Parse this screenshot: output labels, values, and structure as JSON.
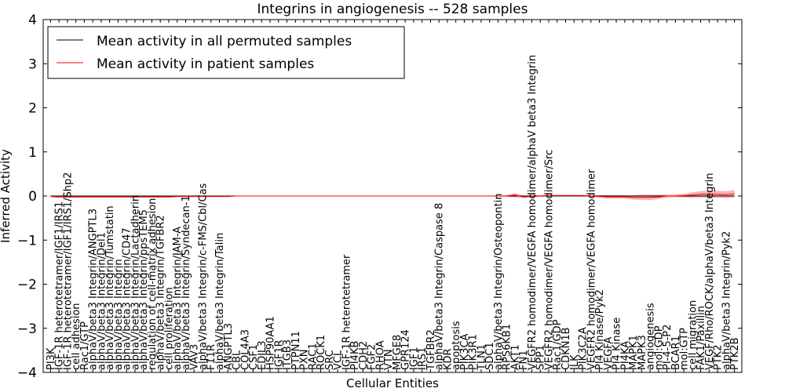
{
  "chart_data": {
    "type": "line",
    "title": "Integrins in angiogenesis -- 528 samples",
    "xlabel": "Cellular Entities",
    "ylabel": "Inferred Activity",
    "ylim": [
      -4,
      4
    ],
    "yticks": [
      -4,
      -3,
      -2,
      -1,
      0,
      1,
      2,
      3,
      4
    ],
    "ytick_labels": [
      "−4",
      "−3",
      "−2",
      "−1",
      "0",
      "1",
      "2",
      "3",
      "4"
    ],
    "grid": false,
    "legend_position": "top-left",
    "legend": [
      {
        "label": "Mean activity in all permuted samples",
        "color": "#000000"
      },
      {
        "label": "Mean activity in patient samples",
        "color": "#ff0000"
      }
    ],
    "categories": [
      "PI3K",
      "IGF-1R heterotetramer/IGF1/IRS1",
      "IGF-1R heterotetramer/IGF1/IRS1/Shp2",
      "cell adhesion",
      "Rac1/GTP",
      "alphaV/beta3 Integrin/ANGPTL3",
      "alphaV/beta3 Integrin/Del1",
      "alphaV/beta3 Integrin/Tumstatin",
      "alphaV/beta3 Integrin",
      "alphaV/beta3 Integrin/CD47",
      "alphaV/beta3 Integrin/Lactadherin",
      "alphaV/beta3 Integrin/ppsTEM5",
      "regulation of cell-matrix adhesion",
      "alphaV/beta3 Integrin/TGFBR2",
      "cell proliferation",
      "alphaV/beta3 Integrin/JAM-A",
      "alphaV/beta3 Integrin/Syndecan-1",
      "VAV3",
      "alphaV/beta3 Integrin/c-FMS/Cbl/Cas",
      "F11R",
      "alphaV/beta3 Integrin/Talin",
      "ANGPTL3",
      "CBL",
      "COL4A3",
      "CSF1",
      "EDIL3",
      "HSP90AA1",
      "IGF1R",
      "ITGB3",
      "PTPN11",
      "PXN",
      "RAC1",
      "ROCK1",
      "SRC",
      "VCL",
      "IGF-1R heterotetramer",
      "PI4KB",
      "CDH2",
      "FGF2",
      "RHOA",
      "VTN",
      "MFGE8",
      "GPR124",
      "IGF1",
      "IRS1",
      "TGFBR2",
      "alphaV/beta3 Integrin/Caspase 8",
      "KDR",
      "apoptosis",
      "PIK3CA",
      "PIK3R1",
      "TLN1",
      "SDC1",
      "alphaV/beta3 Integrin/Osteopontin",
      "RPS6KB1",
      "AKT1",
      "FN1",
      "VEGFR2 homodimer/VEGFA homodimer/alphaV beta3 Integrin",
      "SPP1",
      "VEGFR2 homodimer/VEGFA homodimer/Src",
      "Rac1/GDP",
      "CDKN1B",
      "ILK",
      "PIK3C2A",
      "VEGFR2 homodimer/VEGFA homodimer",
      "PI4 Kinase/Pyk2",
      "VEGFA",
      "PI4 Kinase",
      "PI4KA",
      "MAPK1",
      "MAPK3",
      "angiogenesis",
      "mol:GDP",
      "PI-4-5-P2",
      "BCAR1",
      "mol:GTP",
      "cell migration",
      "FAK1/Paxillin",
      "VEGF/Rho/ROCK/alphaV/beta3 Integrin",
      "PTK2",
      "alphaV/beta3 Integrin/Pyk2",
      "PTK2B"
    ],
    "series": [
      {
        "name": "Mean activity in all permuted samples",
        "color": "#000000",
        "values": [
          0,
          0,
          0,
          0,
          0,
          0,
          0,
          0,
          0,
          0,
          0,
          0,
          0,
          0,
          0,
          0,
          0,
          0,
          0,
          0,
          0,
          0,
          0,
          0,
          0,
          0,
          0,
          0,
          0,
          0,
          0,
          0,
          0,
          0,
          0,
          0,
          0,
          0,
          0,
          0,
          0,
          0,
          0,
          0,
          0,
          0,
          0,
          0,
          0,
          0,
          0,
          0,
          0,
          0,
          0,
          0,
          0,
          0,
          0,
          0,
          0,
          0,
          0,
          0,
          0,
          0,
          0,
          0,
          0,
          0,
          0,
          0,
          0,
          0,
          0,
          0,
          0,
          0,
          0,
          0,
          0,
          0
        ]
      },
      {
        "name": "Mean activity in patient samples",
        "color": "#ff0000",
        "values": [
          -0.01,
          -0.02,
          -0.02,
          -0.02,
          -0.02,
          -0.02,
          -0.02,
          -0.02,
          -0.02,
          -0.02,
          -0.02,
          -0.02,
          -0.02,
          -0.02,
          -0.02,
          -0.01,
          -0.01,
          -0.01,
          -0.01,
          -0.01,
          -0.01,
          -0.01,
          0,
          0,
          0,
          0,
          0,
          0,
          0,
          0,
          0,
          0,
          0,
          0,
          0,
          0,
          0,
          0,
          0,
          0,
          0,
          0,
          0,
          0,
          0,
          0,
          0,
          0,
          0,
          0,
          0,
          0,
          0,
          0,
          0,
          0.02,
          -0.02,
          -0.01,
          0,
          0.01,
          0.01,
          0.01,
          0.01,
          0.01,
          0,
          -0.01,
          -0.02,
          -0.02,
          -0.02,
          -0.03,
          -0.03,
          -0.03,
          -0.02,
          0,
          0,
          0.01,
          0.02,
          0.04,
          0.04,
          0.04,
          0.03,
          0.05
        ],
        "band": [
          0.02,
          0.02,
          0.02,
          0.02,
          0.02,
          0.02,
          0.02,
          0.02,
          0.02,
          0.02,
          0.02,
          0.02,
          0.02,
          0.02,
          0.02,
          0.02,
          0.02,
          0.02,
          0.02,
          0.02,
          0.02,
          0.02,
          0.01,
          0.01,
          0.01,
          0.01,
          0.01,
          0.01,
          0.01,
          0.01,
          0.01,
          0.01,
          0.01,
          0.01,
          0.01,
          0.01,
          0.01,
          0.01,
          0.01,
          0.01,
          0.01,
          0.01,
          0.01,
          0.01,
          0.01,
          0.01,
          0.01,
          0.01,
          0.01,
          0.01,
          0.01,
          0.01,
          0.01,
          0.01,
          0.02,
          0.05,
          0.03,
          0.02,
          0.02,
          0.02,
          0.02,
          0.02,
          0.02,
          0.02,
          0.02,
          0.03,
          0.04,
          0.04,
          0.04,
          0.05,
          0.06,
          0.06,
          0.05,
          0.03,
          0.03,
          0.04,
          0.06,
          0.07,
          0.08,
          0.08,
          0.08,
          0.08
        ]
      }
    ]
  }
}
